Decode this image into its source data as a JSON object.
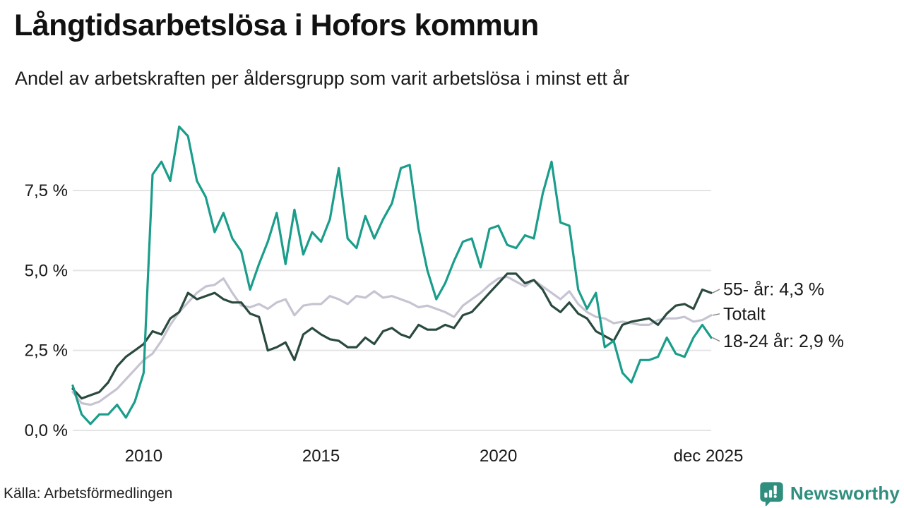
{
  "header": {
    "title": "Långtidsarbetslösa i Hofors kommun",
    "subtitle": "Andel av arbetskraften per åldersgrupp som varit arbetslösa i minst ett år"
  },
  "footer": {
    "source": "Källa: Arbetsförmedlingen",
    "brand": "Newsworthy"
  },
  "colors": {
    "series_18_24": "#1a9d8a",
    "series_55": "#2a4a3e",
    "series_total": "#c6c4d2",
    "gridline": "#e4e4e4",
    "axis_text": "#1a1a1a",
    "connector": "#888888",
    "brand_teal": "#2f8e7e",
    "background": "#ffffff"
  },
  "chart_data": {
    "type": "line",
    "title": "Långtidsarbetslösa i Hofors kommun",
    "subtitle": "Andel av arbetskraften per åldersgrupp som varit arbetslösa i minst ett år",
    "unit": "% av arbetskraften",
    "x_start": 2008.0,
    "x_step": 0.25,
    "xlim": [
      2008.0,
      2026.0
    ],
    "ylim": [
      0,
      9.8
    ],
    "grid": "horizontal-only",
    "legend_position": "right-end-labels",
    "x_axis_ticks": [
      {
        "label": "2010",
        "x": 2010.0
      },
      {
        "label": "2015",
        "x": 2015.0
      },
      {
        "label": "2020",
        "x": 2020.0
      },
      {
        "label": "dec 2025",
        "x": 2025.92
      }
    ],
    "y_ticks": [
      {
        "label": "0,0 %",
        "value": 0
      },
      {
        "label": "2,5 %",
        "value": 2.5
      },
      {
        "label": "5,0 %",
        "value": 5.0
      },
      {
        "label": "7,5 %",
        "value": 7.5
      }
    ],
    "series": [
      {
        "name": "Totalt",
        "end_label": "Totalt",
        "end_value": 3.6,
        "color": "#c6c4d2",
        "values": [
          1.2,
          0.85,
          0.8,
          0.9,
          1.1,
          1.3,
          1.6,
          1.9,
          2.2,
          2.4,
          2.8,
          3.3,
          3.7,
          4.0,
          4.3,
          4.5,
          4.55,
          4.75,
          4.3,
          3.9,
          3.85,
          3.95,
          3.8,
          4.0,
          4.1,
          3.6,
          3.9,
          3.95,
          3.95,
          4.2,
          4.1,
          3.95,
          4.2,
          4.15,
          4.35,
          4.15,
          4.2,
          4.1,
          4.0,
          3.85,
          3.9,
          3.8,
          3.7,
          3.55,
          3.9,
          4.1,
          4.3,
          4.55,
          4.75,
          4.8,
          4.65,
          4.5,
          4.7,
          4.5,
          4.3,
          4.1,
          4.35,
          3.95,
          3.7,
          3.55,
          3.5,
          3.35,
          3.4,
          3.35,
          3.3,
          3.3,
          3.45,
          3.5,
          3.5,
          3.55,
          3.4,
          3.45,
          3.6
        ]
      },
      {
        "name": "55- år",
        "end_label": "55- år: 4,3 %",
        "end_value": 4.3,
        "color": "#2a4a3e",
        "values": [
          1.3,
          1.0,
          1.1,
          1.2,
          1.5,
          2.0,
          2.3,
          2.5,
          2.7,
          3.1,
          3.0,
          3.5,
          3.7,
          4.3,
          4.1,
          4.2,
          4.3,
          4.1,
          4.0,
          4.0,
          3.65,
          3.55,
          2.5,
          2.6,
          2.75,
          2.2,
          3.0,
          3.2,
          3.0,
          2.85,
          2.8,
          2.6,
          2.6,
          2.9,
          2.7,
          3.1,
          3.2,
          3.0,
          2.9,
          3.3,
          3.15,
          3.15,
          3.3,
          3.2,
          3.6,
          3.7,
          4.0,
          4.3,
          4.6,
          4.9,
          4.9,
          4.6,
          4.7,
          4.4,
          3.9,
          3.7,
          4.0,
          3.65,
          3.5,
          3.1,
          2.95,
          2.8,
          3.3,
          3.4,
          3.45,
          3.5,
          3.3,
          3.65,
          3.9,
          3.95,
          3.8,
          4.4,
          4.3
        ]
      },
      {
        "name": "18-24 år",
        "end_label": "18-24 år: 2,9 %",
        "end_value": 2.9,
        "color": "#1a9d8a",
        "values": [
          1.4,
          0.5,
          0.2,
          0.5,
          0.5,
          0.8,
          0.4,
          0.9,
          1.8,
          8.0,
          8.4,
          7.8,
          9.5,
          9.2,
          7.8,
          7.3,
          6.2,
          6.8,
          6.0,
          5.6,
          4.4,
          5.2,
          5.9,
          6.8,
          5.2,
          6.9,
          5.5,
          6.2,
          5.9,
          6.6,
          8.2,
          6.0,
          5.7,
          6.7,
          6.0,
          6.6,
          7.1,
          8.2,
          8.3,
          6.3,
          5.0,
          4.1,
          4.6,
          5.3,
          5.9,
          6.0,
          5.1,
          6.3,
          6.4,
          5.8,
          5.7,
          6.1,
          6.0,
          7.4,
          8.4,
          6.5,
          6.4,
          4.4,
          3.8,
          4.3,
          2.6,
          2.8,
          1.8,
          1.5,
          2.2,
          2.2,
          2.3,
          2.9,
          2.4,
          2.3,
          2.9,
          3.3,
          2.9
        ]
      }
    ]
  }
}
